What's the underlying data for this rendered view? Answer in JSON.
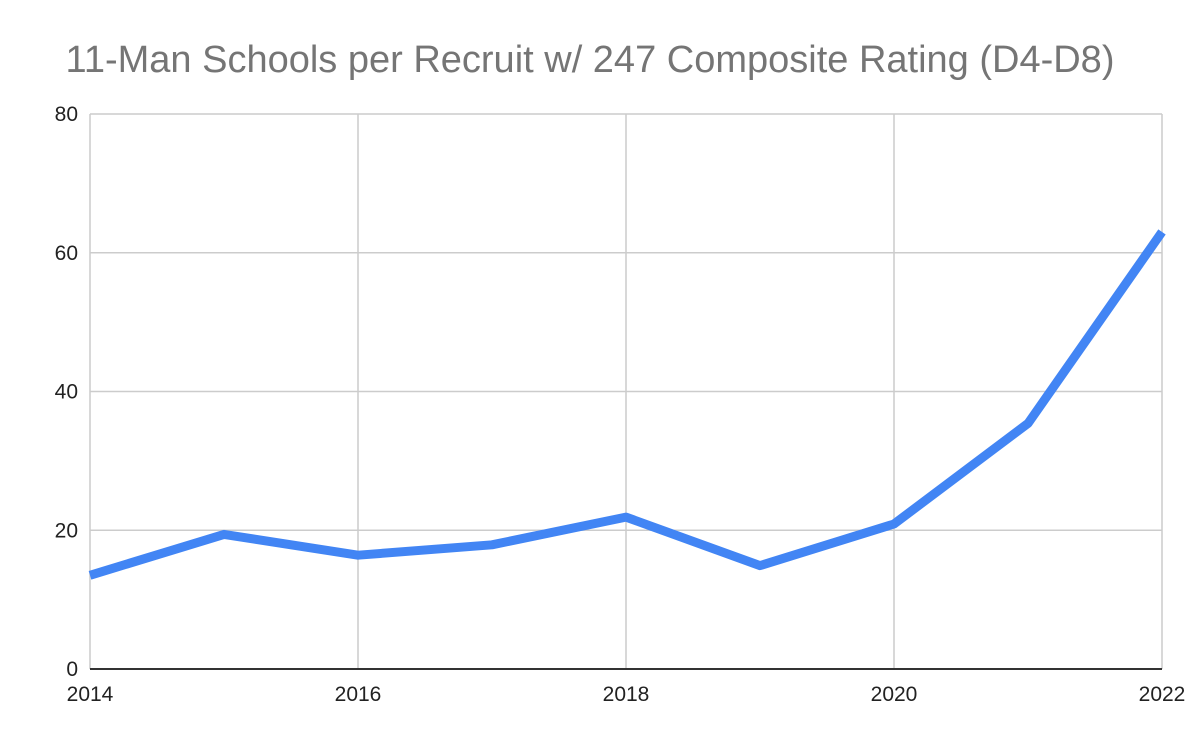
{
  "chart_data": {
    "type": "line",
    "title": "11-Man Schools per Recruit w/ 247 Composite Rating (D4-D8)",
    "xlabel": "",
    "ylabel": "",
    "x": [
      2014,
      2015,
      2016,
      2017,
      2018,
      2019,
      2020,
      2021,
      2022
    ],
    "series": [
      {
        "values": [
          13.5,
          19.4,
          16.4,
          17.9,
          21.9,
          14.9,
          20.9,
          35.4,
          63.0
        ]
      }
    ],
    "xlim": [
      2014,
      2022
    ],
    "ylim": [
      0,
      80
    ],
    "x_ticks": [
      "2014",
      "2016",
      "2018",
      "2020",
      "2022"
    ],
    "y_ticks": [
      "0",
      "20",
      "40",
      "60",
      "80"
    ],
    "grid": true,
    "legend": "none",
    "colors": {
      "series": "#4285f4",
      "title": "#757575",
      "grid": "#cccccc"
    }
  }
}
